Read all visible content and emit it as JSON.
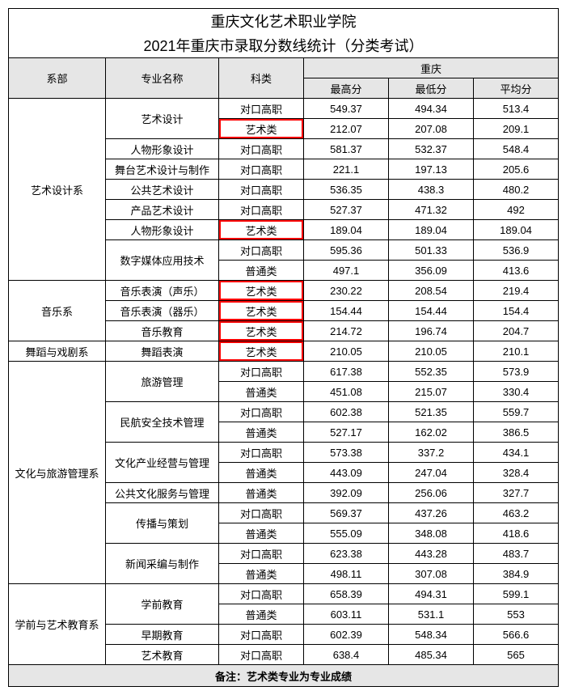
{
  "title_line1": "重庆文化艺术职业学院",
  "title_line2": "2021年重庆市录取分数线统计（分类考试）",
  "headers": {
    "dept": "系部",
    "major": "专业名称",
    "subject": "科类",
    "region": "重庆",
    "max": "最高分",
    "min": "最低分",
    "avg": "平均分"
  },
  "depts": {
    "d1": "艺术设计系",
    "d2": "音乐系",
    "d3": "舞蹈与戏剧系",
    "d4": "文化与旅游管理系",
    "d5": "学前与艺术教育系"
  },
  "majors": {
    "m1": "艺术设计",
    "m2": "人物形象设计",
    "m3": "舞台艺术设计与制作",
    "m4": "公共艺术设计",
    "m5": "产品艺术设计",
    "m6": "人物形象设计",
    "m7": "数字媒体应用技术",
    "m8": "音乐表演（声乐）",
    "m9": "音乐表演（器乐）",
    "m10": "音乐教育",
    "m11": "舞蹈表演",
    "m12": "旅游管理",
    "m13": "民航安全技术管理",
    "m14": "文化产业经营与管理",
    "m15": "公共文化服务与管理",
    "m16": "传播与策划",
    "m17": "新闻采编与制作",
    "m18": "学前教育",
    "m19": "早期教育",
    "m20": "艺术教育"
  },
  "sub": {
    "dk": "对口高职",
    "ys": "艺术类",
    "pt": "普通类"
  },
  "r": {
    "r1": {
      "max": "549.37",
      "min": "494.34",
      "avg": "513.4"
    },
    "r2": {
      "max": "212.07",
      "min": "207.08",
      "avg": "209.1"
    },
    "r3": {
      "max": "581.37",
      "min": "532.37",
      "avg": "548.4"
    },
    "r4": {
      "max": "221.1",
      "min": "197.13",
      "avg": "205.6"
    },
    "r5": {
      "max": "536.35",
      "min": "438.3",
      "avg": "480.2"
    },
    "r6": {
      "max": "527.37",
      "min": "471.32",
      "avg": "492"
    },
    "r7": {
      "max": "189.04",
      "min": "189.04",
      "avg": "189.04"
    },
    "r8": {
      "max": "595.36",
      "min": "501.33",
      "avg": "536.9"
    },
    "r9": {
      "max": "497.1",
      "min": "356.09",
      "avg": "413.6"
    },
    "r10": {
      "max": "230.22",
      "min": "208.54",
      "avg": "219.4"
    },
    "r11": {
      "max": "154.44",
      "min": "154.44",
      "avg": "154.4"
    },
    "r12": {
      "max": "214.72",
      "min": "196.74",
      "avg": "204.7"
    },
    "r13": {
      "max": "210.05",
      "min": "210.05",
      "avg": "210.1"
    },
    "r14": {
      "max": "617.38",
      "min": "552.35",
      "avg": "573.9"
    },
    "r15": {
      "max": "451.08",
      "min": "215.07",
      "avg": "330.4"
    },
    "r16": {
      "max": "602.38",
      "min": "521.35",
      "avg": "559.7"
    },
    "r17": {
      "max": "527.17",
      "min": "162.02",
      "avg": "386.5"
    },
    "r18": {
      "max": "573.38",
      "min": "337.2",
      "avg": "434.1"
    },
    "r19": {
      "max": "443.09",
      "min": "247.04",
      "avg": "328.4"
    },
    "r20": {
      "max": "392.09",
      "min": "256.06",
      "avg": "327.7"
    },
    "r21": {
      "max": "569.37",
      "min": "437.26",
      "avg": "463.2"
    },
    "r22": {
      "max": "555.09",
      "min": "348.08",
      "avg": "418.6"
    },
    "r23": {
      "max": "623.38",
      "min": "443.28",
      "avg": "483.7"
    },
    "r24": {
      "max": "498.11",
      "min": "307.08",
      "avg": "384.9"
    },
    "r25": {
      "max": "658.39",
      "min": "494.31",
      "avg": "599.1"
    },
    "r26": {
      "max": "603.11",
      "min": "531.1",
      "avg": "553"
    },
    "r27": {
      "max": "602.39",
      "min": "548.34",
      "avg": "566.6"
    },
    "r28": {
      "max": "638.4",
      "min": "485.34",
      "avg": "565"
    }
  },
  "note": "备注：艺术类专业为专业成绩"
}
